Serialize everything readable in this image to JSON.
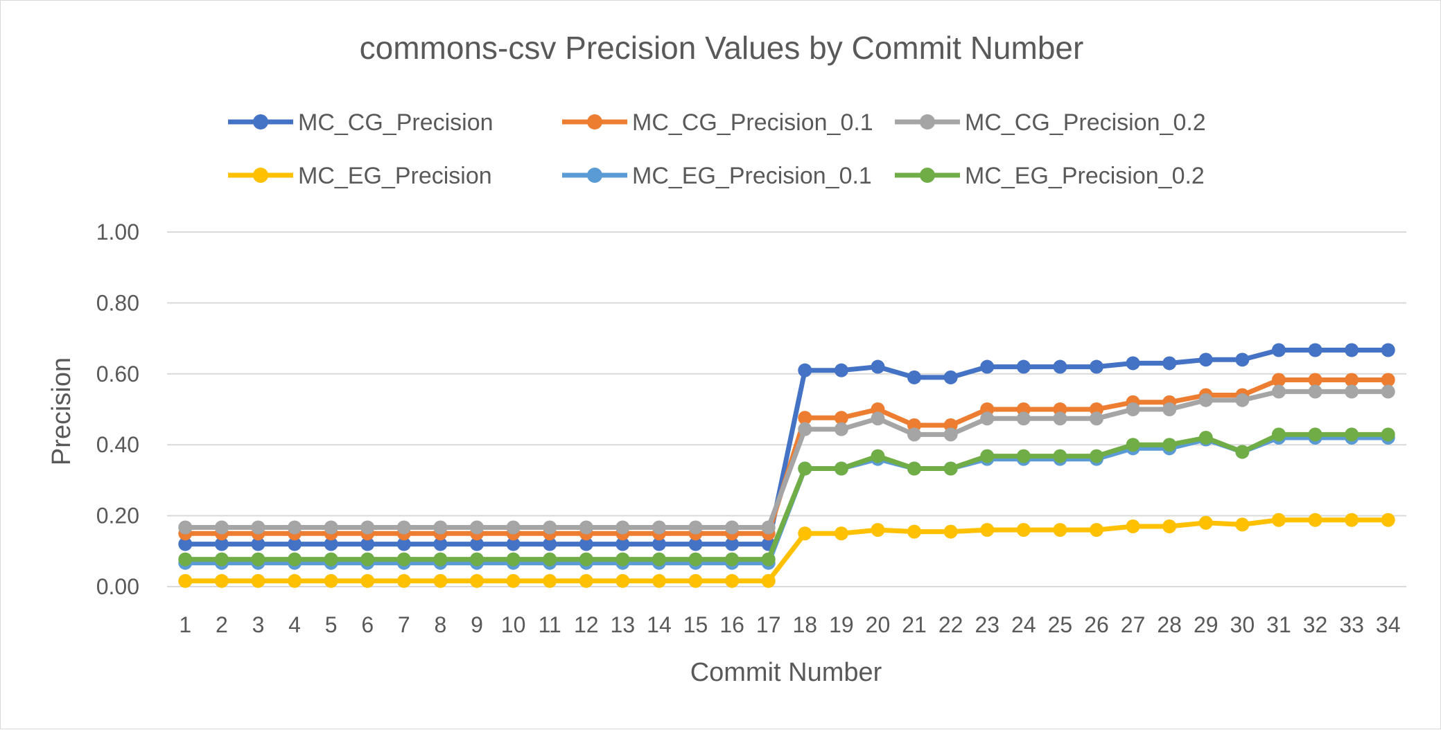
{
  "chart_data": {
    "type": "line",
    "title": "commons-csv Precision Values by Commit Number",
    "xlabel": "Commit Number",
    "ylabel": "Precision",
    "ylim": [
      0,
      1
    ],
    "y_ticks": [
      "0.00",
      "0.20",
      "0.40",
      "0.60",
      "0.80",
      "1.00"
    ],
    "grid": "horizontal",
    "legend_position": "top",
    "categories": [
      "1",
      "2",
      "3",
      "4",
      "5",
      "6",
      "7",
      "8",
      "9",
      "10",
      "11",
      "12",
      "13",
      "14",
      "15",
      "16",
      "17",
      "18",
      "19",
      "20",
      "21",
      "22",
      "23",
      "24",
      "25",
      "26",
      "27",
      "28",
      "29",
      "30",
      "31",
      "32",
      "33",
      "34"
    ],
    "series": [
      {
        "name": "MC_CG_Precision",
        "color": "#4472c4",
        "values": [
          0.12,
          0.12,
          0.12,
          0.12,
          0.12,
          0.12,
          0.12,
          0.12,
          0.12,
          0.12,
          0.12,
          0.12,
          0.12,
          0.12,
          0.12,
          0.12,
          0.12,
          0.61,
          0.61,
          0.62,
          0.59,
          0.59,
          0.62,
          0.62,
          0.62,
          0.62,
          0.63,
          0.63,
          0.64,
          0.64,
          0.667,
          0.667,
          0.667,
          0.667
        ]
      },
      {
        "name": "MC_CG_Precision_0.1",
        "color": "#ed7d31",
        "values": [
          0.15,
          0.15,
          0.15,
          0.15,
          0.15,
          0.15,
          0.15,
          0.15,
          0.15,
          0.15,
          0.15,
          0.15,
          0.15,
          0.15,
          0.15,
          0.15,
          0.15,
          0.476,
          0.476,
          0.5,
          0.455,
          0.455,
          0.5,
          0.5,
          0.5,
          0.5,
          0.52,
          0.52,
          0.54,
          0.54,
          0.583,
          0.583,
          0.583,
          0.583
        ]
      },
      {
        "name": "MC_CG_Precision_0.2",
        "color": "#a5a5a5",
        "values": [
          0.167,
          0.167,
          0.167,
          0.167,
          0.167,
          0.167,
          0.167,
          0.167,
          0.167,
          0.167,
          0.167,
          0.167,
          0.167,
          0.167,
          0.167,
          0.167,
          0.167,
          0.444,
          0.444,
          0.474,
          0.429,
          0.429,
          0.474,
          0.474,
          0.474,
          0.474,
          0.5,
          0.5,
          0.526,
          0.526,
          0.55,
          0.55,
          0.55,
          0.55
        ]
      },
      {
        "name": "MC_EG_Precision",
        "color": "#ffc000",
        "values": [
          0.016,
          0.016,
          0.016,
          0.016,
          0.016,
          0.016,
          0.016,
          0.016,
          0.016,
          0.016,
          0.016,
          0.016,
          0.016,
          0.016,
          0.016,
          0.016,
          0.016,
          0.15,
          0.15,
          0.16,
          0.155,
          0.155,
          0.16,
          0.16,
          0.16,
          0.16,
          0.17,
          0.17,
          0.18,
          0.175,
          0.188,
          0.188,
          0.188,
          0.188
        ]
      },
      {
        "name": "MC_EG_Precision_0.1",
        "color": "#5b9bd5",
        "values": [
          0.067,
          0.067,
          0.067,
          0.067,
          0.067,
          0.067,
          0.067,
          0.067,
          0.067,
          0.067,
          0.067,
          0.067,
          0.067,
          0.067,
          0.067,
          0.067,
          0.067,
          0.333,
          0.333,
          0.36,
          0.333,
          0.333,
          0.36,
          0.36,
          0.36,
          0.36,
          0.39,
          0.39,
          0.415,
          0.38,
          0.42,
          0.42,
          0.42,
          0.42
        ]
      },
      {
        "name": "MC_EG_Precision_0.2",
        "color": "#70ad47",
        "values": [
          0.077,
          0.077,
          0.077,
          0.077,
          0.077,
          0.077,
          0.077,
          0.077,
          0.077,
          0.077,
          0.077,
          0.077,
          0.077,
          0.077,
          0.077,
          0.077,
          0.077,
          0.333,
          0.333,
          0.368,
          0.333,
          0.333,
          0.368,
          0.368,
          0.368,
          0.368,
          0.4,
          0.4,
          0.42,
          0.38,
          0.429,
          0.429,
          0.429,
          0.429
        ]
      }
    ]
  }
}
